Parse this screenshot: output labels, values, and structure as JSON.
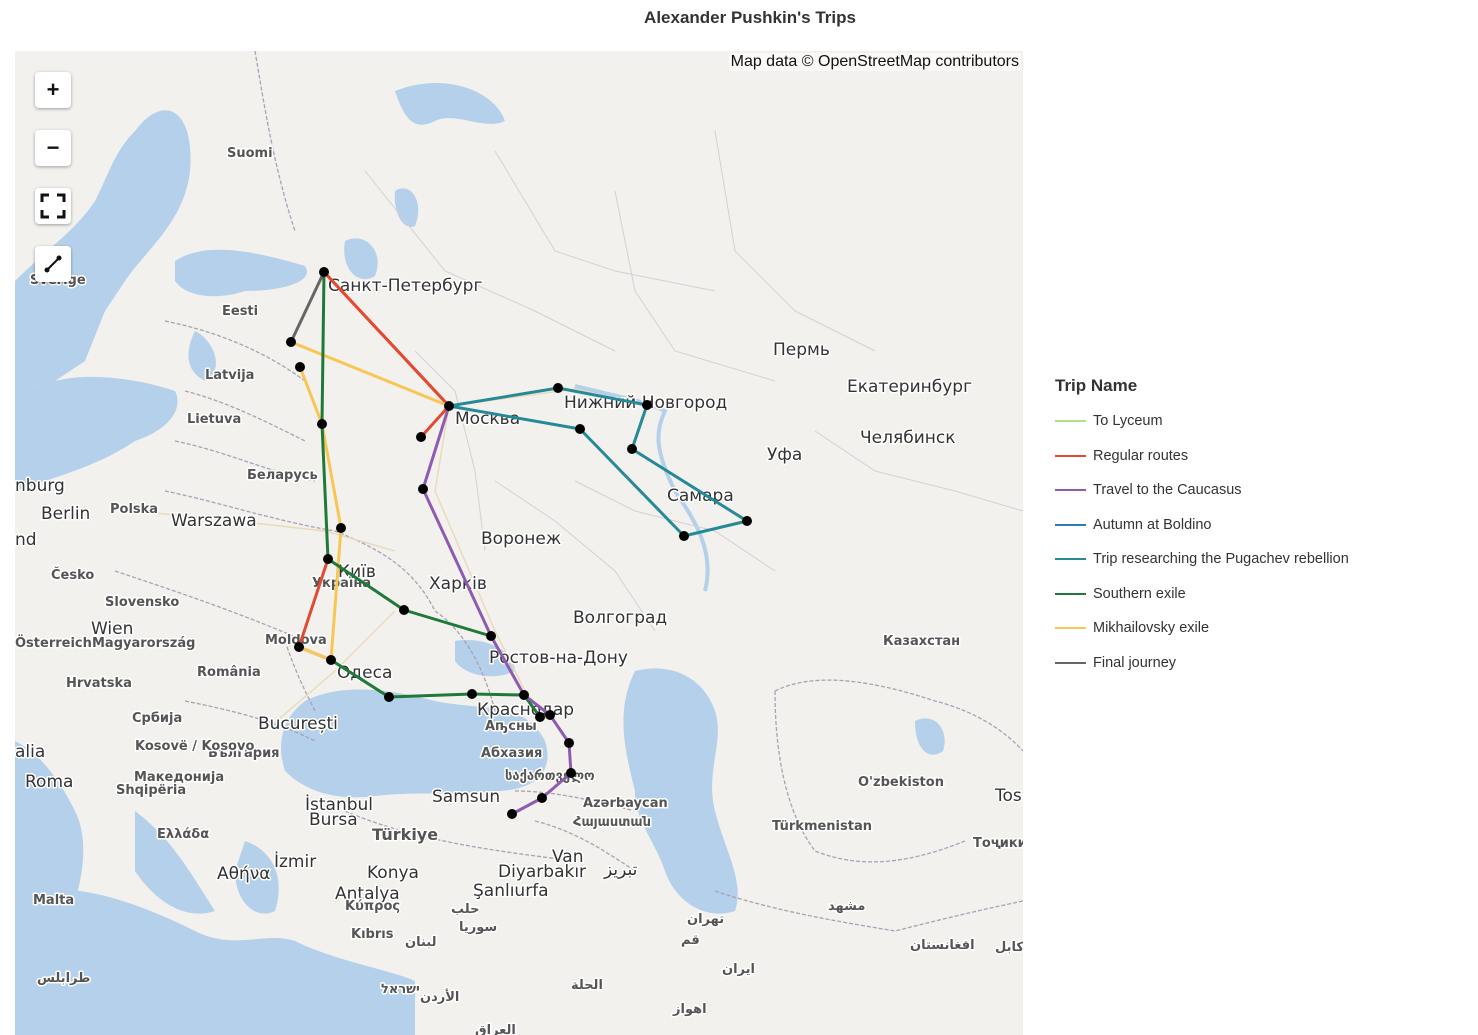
{
  "title": "Alexander Pushkin's Trips",
  "attribution": "Map data © OpenStreetMap contributors",
  "controls": {
    "zoom_in": "+",
    "zoom_out": "−"
  },
  "legend": {
    "title": "Trip Name",
    "items": [
      {
        "name": "To Lyceum",
        "color": "#b2df8a"
      },
      {
        "name": "Regular routes",
        "color": "#e34a33"
      },
      {
        "name": "Travel to the Caucasus",
        "color": "#8e5bb0"
      },
      {
        "name": "Autumn at Boldino",
        "color": "#2b7bba"
      },
      {
        "name": "Trip researching the Pugachev rebellion",
        "color": "#268a96"
      },
      {
        "name": "Southern exile",
        "color": "#1f7a3a"
      },
      {
        "name": "Mikhailovsky exile",
        "color": "#f8c655"
      },
      {
        "name": "Final journey",
        "color": "#666666"
      }
    ]
  },
  "map_labels": [
    {
      "text": "Санкт-Петербург",
      "size": "big"
    },
    {
      "text": "Москва",
      "size": "big"
    },
    {
      "text": "Нижний Новгород",
      "size": "big"
    },
    {
      "text": "Самара",
      "size": "big"
    },
    {
      "text": "Пермь",
      "size": "big"
    },
    {
      "text": "Екатеринбург",
      "size": "big"
    },
    {
      "text": "Челябинск",
      "size": "big"
    },
    {
      "text": "Уфа",
      "size": "big"
    },
    {
      "text": "Воронеж",
      "size": "big"
    },
    {
      "text": "Харків",
      "size": "big"
    },
    {
      "text": "Волгоград",
      "size": "big"
    },
    {
      "text": "Ростов-на-Дону",
      "size": "big"
    },
    {
      "text": "Краснодар",
      "size": "big"
    },
    {
      "text": "Одеса",
      "size": "big"
    },
    {
      "text": "Київ",
      "size": "big"
    },
    {
      "text": "Berlin",
      "size": "big"
    },
    {
      "text": "Warszawa",
      "size": "big"
    },
    {
      "text": "Wien",
      "size": "big"
    },
    {
      "text": "București",
      "size": "big"
    },
    {
      "text": "Roma",
      "size": "big"
    },
    {
      "text": "İstanbul",
      "size": "big"
    },
    {
      "text": "Bursa",
      "size": "big"
    },
    {
      "text": "Samsun",
      "size": "big"
    },
    {
      "text": "İzmir",
      "size": "big"
    },
    {
      "text": "Αθήνα",
      "size": "big"
    },
    {
      "text": "Konya",
      "size": "big"
    },
    {
      "text": "Antalya",
      "size": "big"
    },
    {
      "text": "Van",
      "size": "big"
    },
    {
      "text": "Diyarbakır",
      "size": "big"
    },
    {
      "text": "Şanlıurfa",
      "size": "big"
    },
    {
      "text": "تبریز",
      "size": "big"
    },
    {
      "text": "Suomi",
      "size": "small"
    },
    {
      "text": "Eesti",
      "size": "small"
    },
    {
      "text": "Latvija",
      "size": "small"
    },
    {
      "text": "Lietuva",
      "size": "small"
    },
    {
      "text": "Беларусь",
      "size": "small"
    },
    {
      "text": "Polska",
      "size": "small"
    },
    {
      "text": "Česko",
      "size": "small"
    },
    {
      "text": "Slovensko",
      "size": "small"
    },
    {
      "text": "Magyarország",
      "size": "small"
    },
    {
      "text": "Österreich",
      "size": "small"
    },
    {
      "text": "Hrvatska",
      "size": "small"
    },
    {
      "text": "România",
      "size": "small"
    },
    {
      "text": "Moldova",
      "size": "small"
    },
    {
      "text": "Україна",
      "size": "small"
    },
    {
      "text": "Србија",
      "size": "small"
    },
    {
      "text": "България",
      "size": "small"
    },
    {
      "text": "Kosovë / Kosovo",
      "size": "small"
    },
    {
      "text": "Македонија",
      "size": "small"
    },
    {
      "text": "Shqipëria",
      "size": "small"
    },
    {
      "text": "Ελλάδα",
      "size": "small"
    },
    {
      "text": "Türkiye",
      "size": "mid"
    },
    {
      "text": "Казахстан",
      "size": "small"
    },
    {
      "text": "O'zbekiston",
      "size": "small"
    },
    {
      "text": "Türkmenistan",
      "size": "small"
    },
    {
      "text": "Тоҷикистон",
      "size": "small"
    },
    {
      "text": "Azərbaycan",
      "size": "small"
    },
    {
      "text": "საქართველო",
      "size": "small"
    },
    {
      "text": "Аҧсны",
      "size": "small"
    },
    {
      "text": "Абхазия",
      "size": "small"
    },
    {
      "text": "Հայաստան",
      "size": "small"
    },
    {
      "text": "ایران",
      "size": "small"
    },
    {
      "text": "تهران",
      "size": "small"
    },
    {
      "text": "قم",
      "size": "small"
    },
    {
      "text": "مشهد",
      "size": "small"
    },
    {
      "text": "افغانستان",
      "size": "small"
    },
    {
      "text": "كابل",
      "size": "small"
    },
    {
      "text": "Κύπρος",
      "size": "small"
    },
    {
      "text": "Kıbrıs",
      "size": "small"
    },
    {
      "text": "Malta",
      "size": "small"
    },
    {
      "text": "طرابلس",
      "size": "small"
    },
    {
      "text": "حلب",
      "size": "small"
    },
    {
      "text": "سوريا",
      "size": "small"
    },
    {
      "text": "لبنان",
      "size": "small"
    },
    {
      "text": "ישראל",
      "size": "small"
    },
    {
      "text": "الأردن",
      "size": "small"
    },
    {
      "text": "العراق",
      "size": "small"
    },
    {
      "text": "الحلة",
      "size": "small"
    },
    {
      "text": "اهواز",
      "size": "small"
    },
    {
      "text": "Sverige",
      "size": "small"
    },
    {
      "text": "nburg",
      "size": "big"
    },
    {
      "text": "nd",
      "size": "big"
    },
    {
      "text": "alia",
      "size": "big"
    },
    {
      "text": "Tos",
      "size": "big"
    }
  ]
}
